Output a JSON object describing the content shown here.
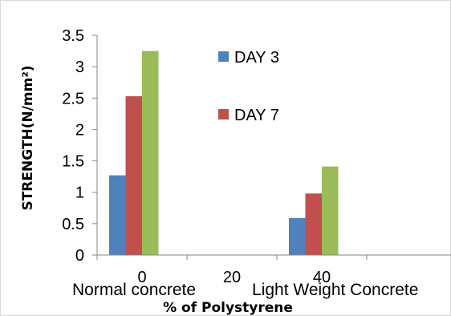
{
  "chart_data": {
    "type": "bar",
    "categories": [
      "0",
      "20",
      "40"
    ],
    "category_names": [
      "Normal concrete",
      "Light Weight Concrete"
    ],
    "series": [
      {
        "name": "DAY 3",
        "color": "#4f81bd",
        "values": [
          1.27,
          null,
          0.59
        ]
      },
      {
        "name": "DAY 7",
        "color": "#c0504d",
        "values": [
          2.53,
          null,
          0.98
        ]
      },
      {
        "name": "",
        "color": "#9bbb59",
        "values": [
          3.25,
          null,
          1.41
        ]
      }
    ],
    "xlabel": "% of Polystyrene",
    "ylabel": "STRENGTH(N/mm²)",
    "ylim": [
      0,
      3.5
    ],
    "yticks": [
      "0",
      "0.5",
      "1",
      "1.5",
      "2",
      "2.5",
      "3",
      "3.5"
    ],
    "ytick_values": [
      0,
      0.5,
      1,
      1.5,
      2,
      2.5,
      3,
      3.5
    ],
    "grid": false,
    "legend_placement": "inside-center-top"
  }
}
